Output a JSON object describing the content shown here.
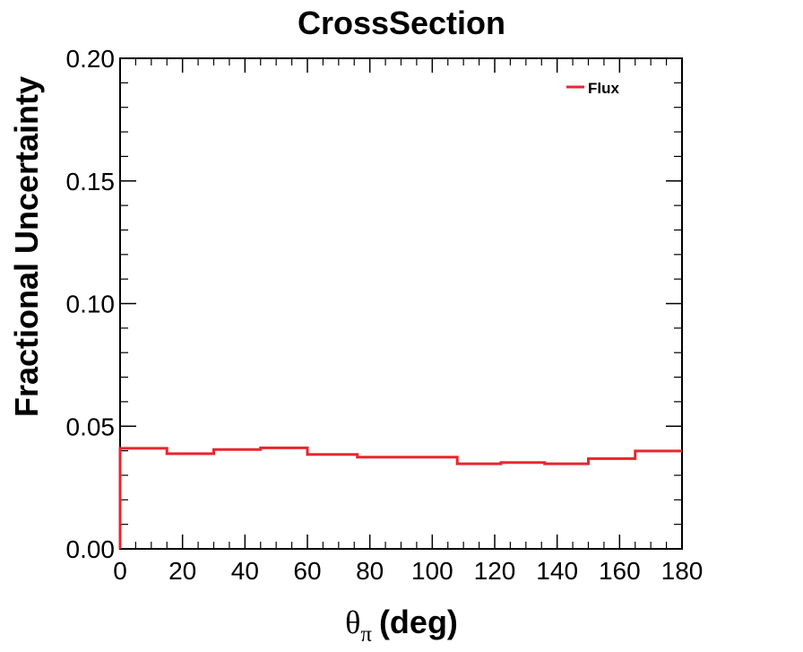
{
  "chart_data": {
    "type": "line",
    "style": "step-histogram",
    "title": "CrossSection",
    "xlabel_symbol": "θ",
    "xlabel_subscript": "π",
    "xlabel_suffix": "(deg)",
    "ylabel": "Fractional Uncertainty",
    "xlim": [
      0,
      180
    ],
    "ylim": [
      0,
      0.2
    ],
    "x_ticks": [
      "0",
      "20",
      "40",
      "60",
      "80",
      "100",
      "120",
      "140",
      "160",
      "180"
    ],
    "y_ticks": [
      "0.00",
      "0.05",
      "0.10",
      "0.15",
      "0.20"
    ],
    "grid": false,
    "legend_position": "top-right",
    "series": [
      {
        "name": "Flux",
        "color": "#e8262e",
        "bin_edges": [
          0,
          15,
          30,
          45,
          60,
          76,
          92,
          108,
          122,
          136,
          150,
          165,
          180
        ],
        "values": [
          0.041,
          0.0388,
          0.0405,
          0.0412,
          0.0385,
          0.0374,
          0.0374,
          0.0347,
          0.0352,
          0.0347,
          0.0368,
          0.0399
        ]
      }
    ]
  }
}
